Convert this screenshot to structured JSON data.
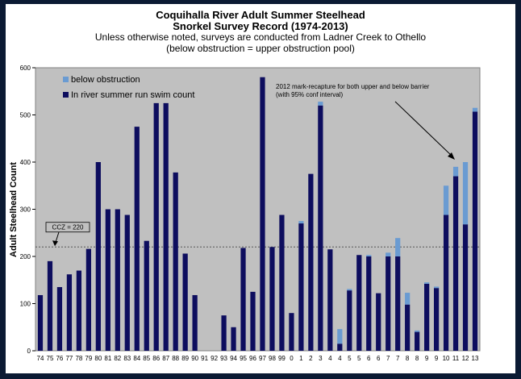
{
  "chart_data": {
    "type": "bar",
    "stacked": true,
    "title": "Coquihalla River Adult Summer Steelhead",
    "subtitle": "Snorkel Survey Record (1974-2013)",
    "note1": "Unless otherwise noted, surveys are conducted from Ladner Creek to Othello",
    "note2": "(below obstruction  = upper obstruction pool)",
    "ylabel": "Adult Steelhead Count",
    "xlabel": "",
    "ylim": [
      0,
      600
    ],
    "yticks": [
      "0",
      "100",
      "200",
      "300",
      "400",
      "500",
      "600"
    ],
    "grid": false,
    "legend_position": "top-left",
    "categories": [
      "74",
      "75",
      "76",
      "77",
      "78",
      "79",
      "80",
      "81",
      "82",
      "83",
      "84",
      "85",
      "86",
      "87",
      "88",
      "89",
      "90",
      "91",
      "92",
      "93",
      "94",
      "95",
      "96",
      "97",
      "98",
      "99",
      "0",
      "1",
      "2",
      "3",
      "4",
      "4",
      "5",
      "5",
      "6",
      "6",
      "7",
      "7",
      "8",
      "8",
      "9",
      "9",
      "10",
      "11",
      "12",
      "13"
    ],
    "series": [
      {
        "name": "In river summer run swim count",
        "color": "#0d0d5e",
        "values": [
          118,
          190,
          135,
          162,
          170,
          216,
          400,
          300,
          300,
          288,
          475,
          233,
          525,
          525,
          378,
          206,
          118,
          0,
          0,
          75,
          50,
          218,
          125,
          580,
          220,
          288,
          80,
          270,
          375,
          520,
          215,
          15,
          128,
          203,
          200,
          122,
          200,
          200,
          98,
          40,
          142,
          133,
          288,
          370,
          268,
          507
        ]
      },
      {
        "name": "below obstruction",
        "color": "#6a9bd2",
        "values": [
          0,
          0,
          0,
          0,
          0,
          0,
          0,
          0,
          0,
          0,
          0,
          0,
          0,
          0,
          0,
          0,
          0,
          0,
          0,
          0,
          0,
          0,
          0,
          0,
          0,
          0,
          0,
          5,
          0,
          8,
          0,
          31,
          3,
          0,
          3,
          0,
          8,
          39,
          25,
          3,
          3,
          3,
          62,
          20,
          132,
          8
        ]
      }
    ],
    "reference_line": {
      "value": 220,
      "label": "CCZ = 220"
    },
    "annotation": {
      "line1": "2012 mark-recapture for both upper and below barrier",
      "line2": "(with 95% conf interval)"
    }
  },
  "colors": {
    "plot_background": "#c0c0c0",
    "page_border": "#0b1a33"
  }
}
